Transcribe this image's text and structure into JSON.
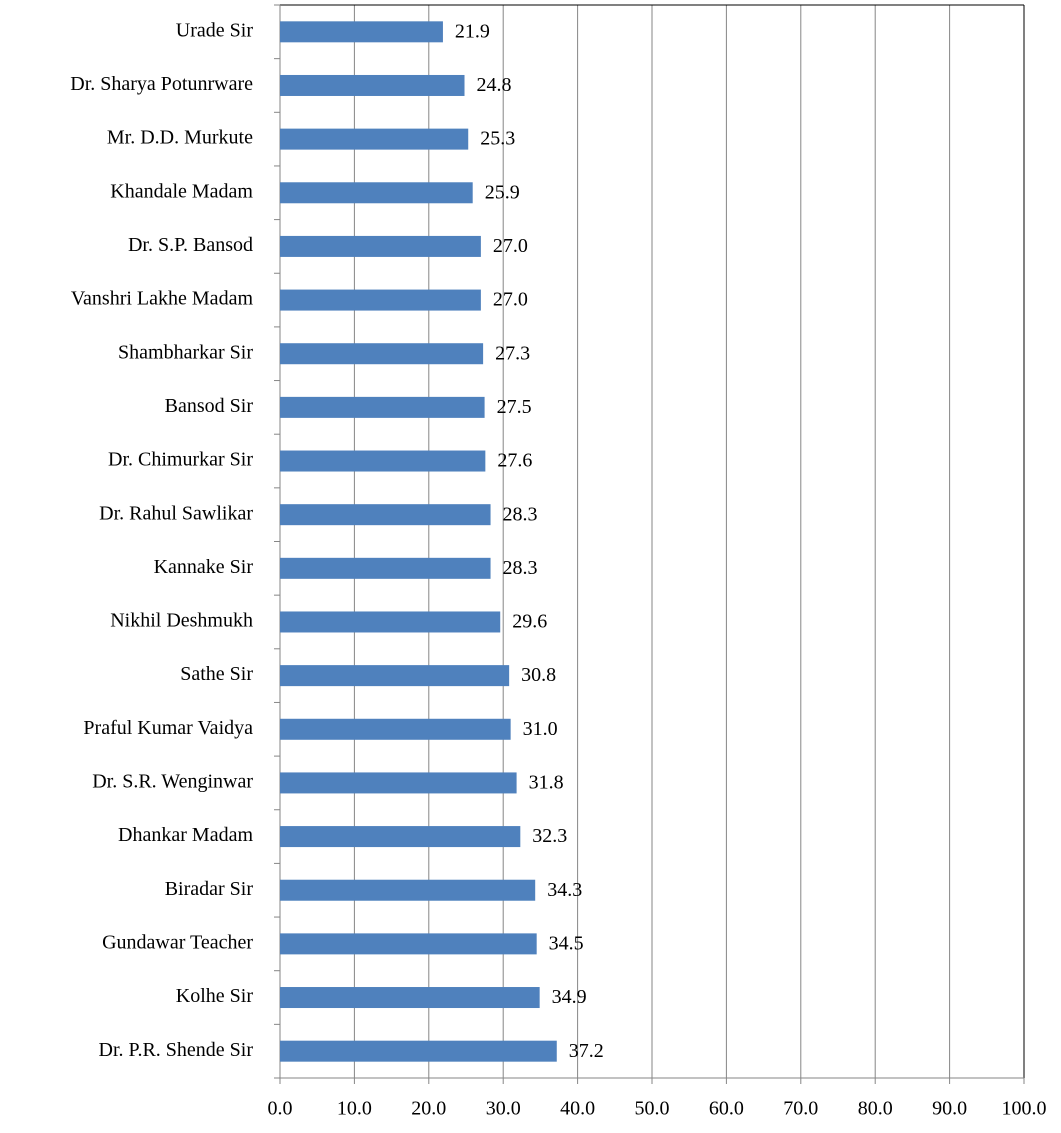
{
  "chart_data": {
    "type": "bar",
    "orientation": "horizontal",
    "categories": [
      "Urade Sir",
      "Dr. Sharya Potunrware",
      "Mr. D.D.  Murkute",
      "Khandale Madam",
      "Dr. S.P. Bansod",
      "Vanshri Lakhe Madam",
      "Shambharkar Sir",
      "Bansod Sir",
      "Dr. Chimurkar Sir",
      "Dr. Rahul Sawlikar",
      "Kannake Sir",
      "Nikhil Deshmukh",
      "Sathe Sir",
      "Praful Kumar Vaidya",
      "Dr. S.R. Wenginwar",
      "Dhankar Madam",
      "Biradar Sir",
      "Gundawar Teacher",
      "Kolhe Sir",
      "Dr. P.R. Shende Sir"
    ],
    "values": [
      21.9,
      24.8,
      25.3,
      25.9,
      27.0,
      27.0,
      27.3,
      27.5,
      27.6,
      28.3,
      28.3,
      29.6,
      30.8,
      31.0,
      31.8,
      32.3,
      34.3,
      34.5,
      34.9,
      37.2
    ],
    "value_labels": [
      "21.9",
      "24.8",
      "25.3",
      "25.9",
      "27.0",
      "27.0",
      "27.3",
      "27.5",
      "27.6",
      "28.3",
      "28.3",
      "29.6",
      "30.8",
      "31.0",
      "31.8",
      "32.3",
      "34.3",
      "34.5",
      "34.9",
      "37.2"
    ],
    "color": "#4f81bd",
    "xlim": [
      0,
      100
    ],
    "xticks": [
      {
        "value": 0,
        "label": "0.0"
      },
      {
        "value": 10,
        "label": "10.0"
      },
      {
        "value": 20,
        "label": "20.0"
      },
      {
        "value": 30,
        "label": "30.0"
      },
      {
        "value": 40,
        "label": "40.0"
      },
      {
        "value": 50,
        "label": "50.0"
      },
      {
        "value": 60,
        "label": "60.0"
      },
      {
        "value": 70,
        "label": "70.0"
      },
      {
        "value": 80,
        "label": "80.0"
      },
      {
        "value": 90,
        "label": "90.0"
      },
      {
        "value": 100,
        "label": "100.0"
      }
    ],
    "grid": true
  }
}
